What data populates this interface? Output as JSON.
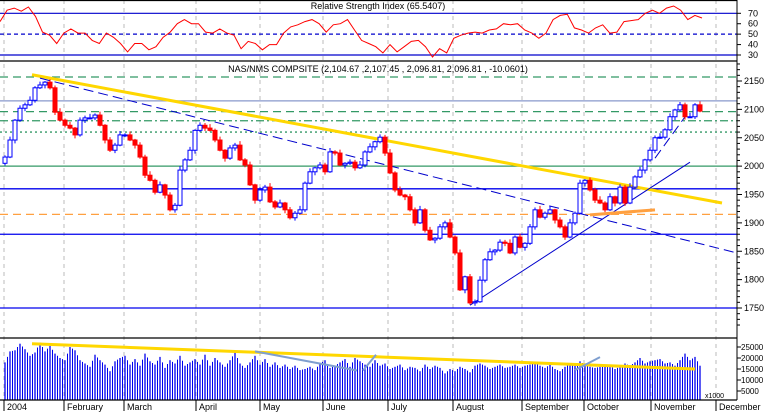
{
  "chart_data": [
    {
      "type": "line",
      "title": "Relative Strength Index (65.5407)",
      "ylim": [
        22,
        80
      ],
      "yticks": [
        70,
        60,
        50,
        40,
        30
      ],
      "reference_levels": [
        70,
        50,
        30
      ],
      "series": [
        {
          "values": [
            62,
            73,
            75,
            72,
            76,
            67,
            52,
            49,
            41,
            51,
            55,
            51,
            51,
            44,
            41,
            51,
            47,
            41,
            33,
            41,
            41,
            35,
            38,
            47,
            52,
            60,
            64,
            60,
            60,
            52,
            51,
            55,
            51,
            49,
            36,
            43,
            41,
            35,
            40,
            40,
            51,
            57,
            59,
            62,
            64,
            60,
            52,
            59,
            60,
            64,
            54,
            44,
            41,
            38,
            32,
            40,
            33,
            38,
            43,
            44,
            38,
            28,
            36,
            32,
            46,
            49,
            51,
            52,
            51,
            54,
            55,
            60,
            59,
            60,
            54,
            51,
            46,
            51,
            64,
            68,
            69,
            56,
            54,
            51,
            56,
            59,
            51,
            52,
            62,
            63,
            64,
            70,
            73,
            70,
            75,
            77,
            73,
            64,
            68,
            65.5
          ]
        }
      ],
      "colors": {
        "line": "#ff0000",
        "levels": "#0000cc"
      }
    },
    {
      "type": "candlestick",
      "title": "NAS/NMS COMPSITE (2,104.67 ,2,107.45 , 2,096.81, 2,096.81 , -10.0601)",
      "ylim": [
        1710,
        2180
      ],
      "yticks": [
        2150,
        2100,
        2050,
        2000,
        1950,
        1900,
        1850,
        1800,
        1750
      ],
      "x_labels": [
        "2004",
        "February",
        "March",
        "April",
        "May",
        "June",
        "July",
        "August",
        "September",
        "October",
        "November",
        "December"
      ],
      "first_open": 2005,
      "closes": [
        2016,
        2046,
        2081,
        2102,
        2108,
        2116,
        2138,
        2143,
        2148,
        2138,
        2095,
        2081,
        2072,
        2067,
        2055,
        2081,
        2085,
        2085,
        2090,
        2072,
        2046,
        2028,
        2037,
        2055,
        2055,
        2046,
        2037,
        2016,
        1984,
        1975,
        1954,
        1967,
        1949,
        1923,
        1931,
        1993,
        2011,
        2028,
        2063,
        2072,
        2067,
        2063,
        2046,
        2028,
        2014,
        2032,
        2037,
        2011,
        2002,
        1967,
        1940,
        1958,
        1963,
        1937,
        1928,
        1935,
        1923,
        1909,
        1917,
        1923,
        1970,
        1990,
        1997,
        2002,
        1990,
        2025,
        2023,
        2002,
        2005,
        2007,
        1997,
        2002,
        2025,
        2034,
        2043,
        2051,
        2023,
        1988,
        1958,
        1949,
        1946,
        1923,
        1900,
        1923,
        1887,
        1870,
        1873,
        1893,
        1900,
        1875,
        1847,
        1782,
        1805,
        1759,
        1761,
        1799,
        1835,
        1849,
        1852,
        1866,
        1864,
        1847,
        1875,
        1857,
        1864,
        1893,
        1923,
        1910,
        1917,
        1923,
        1905,
        1893,
        1875,
        1900,
        1917,
        1970,
        1975,
        1958,
        1940,
        1935,
        1923,
        1946,
        1935,
        1963,
        1935,
        1963,
        1981,
        1993,
        2011,
        2028,
        2050,
        2051,
        2064,
        2087,
        2099,
        2108,
        2087,
        2087,
        2108,
        2097
      ],
      "horizontal_levels": [
        {
          "price": 2157,
          "color": "#339966",
          "style": "dash"
        },
        {
          "price": 2115,
          "color": "#8899cc",
          "style": "solid"
        },
        {
          "price": 2096,
          "color": "#339966",
          "style": "dash"
        },
        {
          "price": 2080,
          "color": "#339966",
          "style": "dashdot"
        },
        {
          "price": 2060,
          "color": "#339966",
          "style": "dot"
        },
        {
          "price": 2000,
          "color": "#339966",
          "style": "solid"
        },
        {
          "price": 1960,
          "color": "#0000ee",
          "style": "solid"
        },
        {
          "price": 1915,
          "color": "#ffa040",
          "style": "dash"
        },
        {
          "price": 1880,
          "color": "#0000ee",
          "style": "solid"
        },
        {
          "price": 1750,
          "color": "#0000ee",
          "style": "solid"
        }
      ],
      "trendlines": [
        {
          "from": [
            5.4,
            2161
          ],
          "to": [
            143.4,
            1935
          ],
          "color": "#ffd700",
          "style": "thick"
        },
        {
          "from": [
            7,
            2155
          ],
          "to": [
            146.4,
            1847
          ],
          "color": "#0000cc",
          "style": "dash"
        },
        {
          "from": [
            93,
            1755
          ],
          "to": [
            137,
            2007
          ],
          "color": "#0000cc",
          "style": "solid"
        },
        {
          "from": [
            130,
            2014
          ],
          "to": [
            137,
            2099
          ],
          "color": "#0000cc",
          "style": "dash"
        },
        {
          "from": [
            117,
            1914
          ],
          "to": [
            130,
            1923
          ],
          "color": "#ffa040",
          "style": "thick"
        }
      ],
      "colors": {
        "up": "#0000ff",
        "down": "#ff0000"
      }
    },
    {
      "type": "bar",
      "yticks": [
        25000,
        20000,
        15000,
        10000,
        5000
      ],
      "unit_label": "x1000",
      "values": [
        18000,
        23000,
        23500,
        26500,
        24000,
        21000,
        22500,
        27000,
        23000,
        25500,
        22000,
        20000,
        19000,
        25000,
        23500,
        19000,
        17500,
        16000,
        21500,
        19000,
        17000,
        14000,
        18500,
        20000,
        21000,
        17000,
        19500,
        16500,
        22000,
        18500,
        17000,
        20500,
        15500,
        19000,
        17500,
        21000,
        16500,
        18000,
        19500,
        17000,
        21500,
        16500,
        20000,
        18000,
        16000,
        19000,
        22500,
        17500,
        15500,
        18000,
        21000,
        17000,
        19500,
        16000,
        18000,
        15500,
        17000,
        15000,
        16500,
        14500,
        15000,
        16000,
        14500,
        17500,
        19000,
        15500,
        16500,
        18000,
        19500,
        16000,
        20000,
        18500,
        17000,
        16000,
        19000,
        16500,
        17500,
        15000,
        16000,
        17000,
        14500,
        16000,
        15500,
        14000,
        17000,
        15000,
        16500,
        15500,
        13000,
        15000,
        14000,
        16000,
        15000,
        13500,
        16500,
        17500,
        16500,
        15000,
        16000,
        17000,
        15500,
        16000,
        17000,
        15500,
        16500,
        17000,
        18000,
        16500,
        15500,
        17000,
        15000,
        14000,
        16000,
        17500,
        16500,
        18500,
        17000,
        16000,
        15500,
        16000,
        17000,
        16500,
        15000,
        16000,
        17500,
        16500,
        18000,
        20000,
        17500,
        18500,
        19000,
        19500,
        17500,
        18000,
        16500,
        19000,
        22000,
        19000,
        20500,
        16500
      ],
      "moving_average": {
        "from": [
          5.4,
          26500
        ],
        "to": [
          138,
          15000
        ],
        "color": "#ffd700"
      },
      "trendlines": [
        {
          "from": [
            50,
            23000
          ],
          "to": [
            70.4,
            14300
          ],
          "color": "#7f9fcf"
        },
        {
          "from": [
            71.6,
            14300
          ],
          "to": [
            74.2,
            21500
          ],
          "color": "#7f9fcf"
        },
        {
          "from": [
            114,
            14500
          ],
          "to": [
            119,
            20400
          ],
          "color": "#7f9fcf"
        }
      ],
      "colors": {
        "bar": "#0000ee"
      }
    }
  ]
}
